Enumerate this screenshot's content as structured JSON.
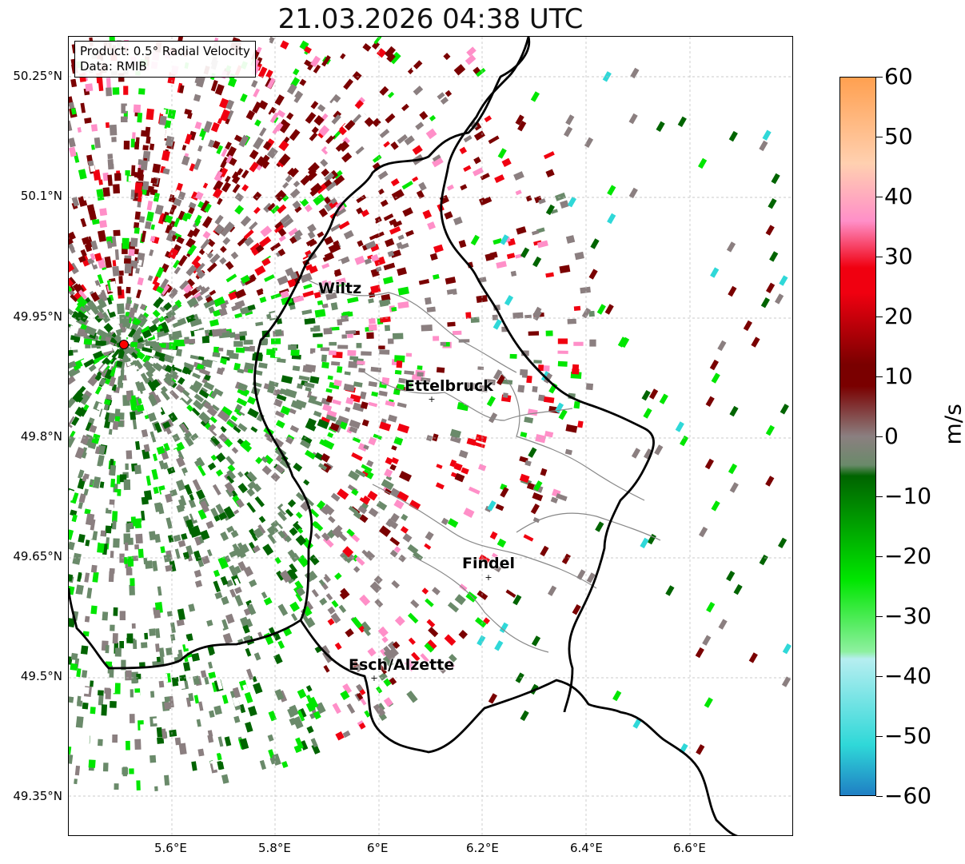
{
  "title": "21.03.2026 04:38 UTC",
  "info": {
    "product": "Product: 0.5° Radial Velocity",
    "source": "Data: RMIB"
  },
  "axes": {
    "lat_ticks": [
      "50.25°N",
      "50.1°N",
      "49.95°N",
      "49.8°N",
      "49.65°N",
      "49.5°N",
      "49.35°N"
    ],
    "lon_ticks": [
      "5.6°E",
      "5.8°E",
      "6°E",
      "6.2°E",
      "6.4°E",
      "6.6°E"
    ]
  },
  "cities": [
    {
      "name": "Wiltz"
    },
    {
      "name": "Ettelbruck"
    },
    {
      "name": "Findel"
    },
    {
      "name": "Esch/Alzette"
    }
  ],
  "colorbar": {
    "unit": "m/s",
    "min": -60,
    "max": 60,
    "tick_labels": [
      "60",
      "50",
      "40",
      "30",
      "20",
      "10",
      "0",
      "−10",
      "−20",
      "−30",
      "−40",
      "−50",
      "−60"
    ],
    "colors": {
      "strong_negative": "#1f7fc4",
      "cyan": "#2fd8d8",
      "light_cyan": "#b6eef0",
      "light_green": "#8ef0a0",
      "bright_green": "#00e600",
      "dark_green": "#006400",
      "zero_gray_green": "#6a8a6a",
      "zero_gray": "#8b7f80",
      "dark_red": "#7a0000",
      "red": "#f00010",
      "pink": "#ff8fc8",
      "light_pink": "#ffd0b0",
      "orange": "#ffa050"
    }
  },
  "radar_site": {
    "color": "#ff0000"
  }
}
